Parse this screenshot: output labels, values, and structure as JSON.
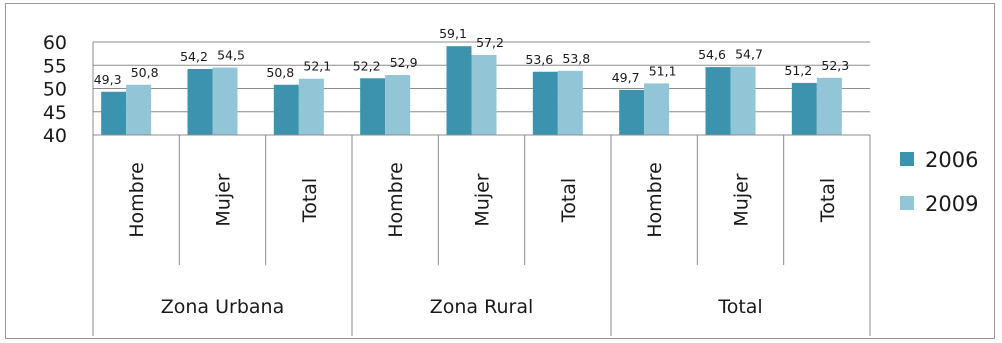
{
  "chart_data": {
    "type": "bar",
    "title": "",
    "xlabel": "",
    "ylabel": "",
    "ylim": [
      40,
      60
    ],
    "yticks": [
      40,
      45,
      50,
      55,
      60
    ],
    "grid": true,
    "legend_position": "right",
    "groups": [
      "Zona Urbana",
      "Zona Rural",
      "Total"
    ],
    "categories": [
      "Hombre",
      "Mujer",
      "Total",
      "Hombre",
      "Mujer",
      "Total",
      "Hombre",
      "Mujer",
      "Total"
    ],
    "series": [
      {
        "name": "2006",
        "color": "#3c93ad",
        "values": [
          49.3,
          54.2,
          50.8,
          52.2,
          59.1,
          53.6,
          49.7,
          54.6,
          51.2
        ],
        "labels": [
          "49,3",
          "54,2",
          "50,8",
          "52,2",
          "59,1",
          "53,6",
          "49,7",
          "54,6",
          "51,2"
        ]
      },
      {
        "name": "2009",
        "color": "#92c5d6",
        "values": [
          50.8,
          54.5,
          52.1,
          52.9,
          57.2,
          53.8,
          51.1,
          54.7,
          52.3
        ],
        "labels": [
          "50,8",
          "54,5",
          "52,1",
          "52,9",
          "57,2",
          "53,8",
          "51,1",
          "54,7",
          "52,3"
        ]
      }
    ]
  }
}
